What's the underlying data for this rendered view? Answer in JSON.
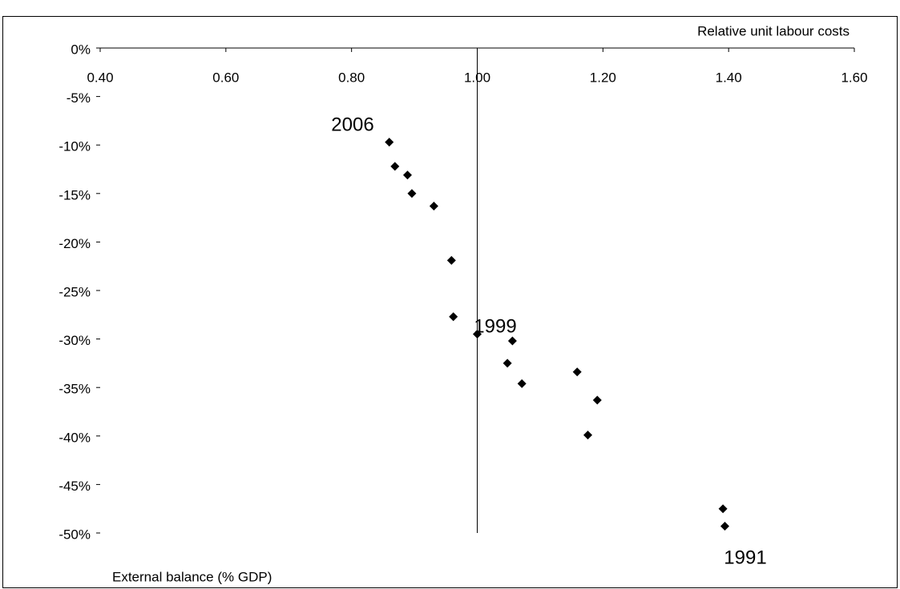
{
  "chart_data": {
    "type": "scatter",
    "x_label": "Relative unit labour costs",
    "y_label": "External balance (% GDP)",
    "annotations": [
      "2006",
      "1999",
      "1991"
    ],
    "color": "#000000",
    "x": [
      0.86,
      0.869,
      0.889,
      0.896,
      0.931,
      0.959,
      0.962,
      1.0,
      1.056,
      1.048,
      1.071,
      1.159,
      1.191,
      1.176,
      1.391,
      1.394
    ],
    "values": [
      -9.7,
      -12.2,
      -13.1,
      -15.0,
      -16.3,
      -21.9,
      -27.7,
      -29.5,
      -30.2,
      -32.5,
      -34.6,
      -33.4,
      -36.3,
      -39.9,
      -47.5,
      -49.3
    ],
    "xlim": [
      0.4,
      1.6
    ],
    "xticks": [
      {
        "value": 0.4,
        "label": "0.40"
      },
      {
        "value": 0.6,
        "label": "0.60"
      },
      {
        "value": 0.8,
        "label": "0.80"
      },
      {
        "value": 1.0,
        "label": "1.00"
      },
      {
        "value": 1.2,
        "label": "1.20"
      },
      {
        "value": 1.4,
        "label": "1.40"
      },
      {
        "value": 1.6,
        "label": "1.60"
      }
    ],
    "ylim": [
      -50,
      0
    ],
    "yticks": [
      {
        "value": 0,
        "label": "0%"
      },
      {
        "value": -5,
        "label": "-5%"
      },
      {
        "value": -10,
        "label": "-10%"
      },
      {
        "value": -15,
        "label": "-15%"
      },
      {
        "value": -20,
        "label": "-20%"
      },
      {
        "value": -25,
        "label": "-25%"
      },
      {
        "value": -30,
        "label": "-30%"
      },
      {
        "value": -35,
        "label": "-35%"
      },
      {
        "value": -40,
        "label": "-40%"
      },
      {
        "value": -45,
        "label": "-45%"
      },
      {
        "value": -50,
        "label": "-50%"
      }
    ],
    "y_axis_crosses": 1.0,
    "grid": false
  }
}
